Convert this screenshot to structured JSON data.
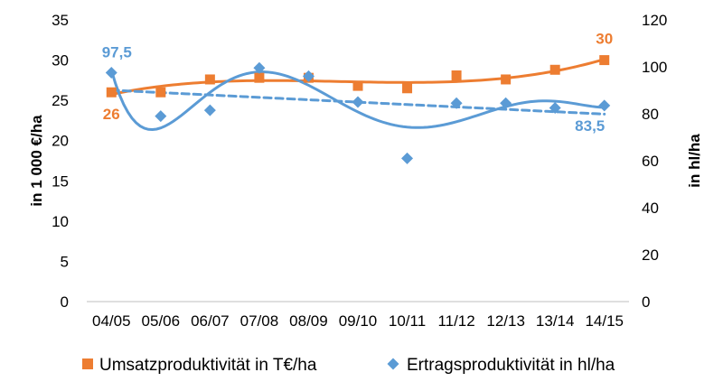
{
  "chart_data": {
    "type": "scatter",
    "categories": [
      "04/05",
      "05/06",
      "06/07",
      "07/08",
      "08/09",
      "09/10",
      "10/11",
      "11/12",
      "12/13",
      "13/14",
      "14/15"
    ],
    "ylabel": "in 1 000 €/ha",
    "y2label": "in hl/ha",
    "ylim": [
      0,
      35
    ],
    "yticks": [
      0,
      5,
      10,
      15,
      20,
      25,
      30,
      35
    ],
    "y2lim": [
      0,
      120
    ],
    "y2ticks": [
      0,
      20,
      40,
      60,
      80,
      100,
      120
    ],
    "grid": false,
    "legend_position": "bottom",
    "series": [
      {
        "name": "Umsatzproduktivität in T€/ha",
        "axis": "left",
        "marker": "square",
        "color": "#ED7D31",
        "values": [
          26,
          26,
          27.6,
          27.8,
          27.8,
          26.8,
          26.5,
          28.1,
          27.6,
          28.8,
          30
        ],
        "trendline": "polynomial",
        "trendline_style": "solid"
      },
      {
        "name": "Ertragsproduktivität in hl/ha",
        "axis": "right",
        "marker": "diamond",
        "color": "#5B9BD5",
        "values": [
          97.5,
          79,
          81.5,
          99.5,
          96,
          85,
          61,
          84.5,
          84.5,
          82.5,
          83.5
        ],
        "trendline": "polynomial",
        "trendline_style": "solid",
        "trendline2": "linear",
        "trendline2_style": "dashed"
      }
    ],
    "data_labels": [
      {
        "series": 0,
        "index": 0,
        "text": "26"
      },
      {
        "series": 0,
        "index": 10,
        "text": "30"
      },
      {
        "series": 1,
        "index": 0,
        "text": "97,5"
      },
      {
        "series": 1,
        "index": 10,
        "text": "83,5"
      }
    ]
  }
}
